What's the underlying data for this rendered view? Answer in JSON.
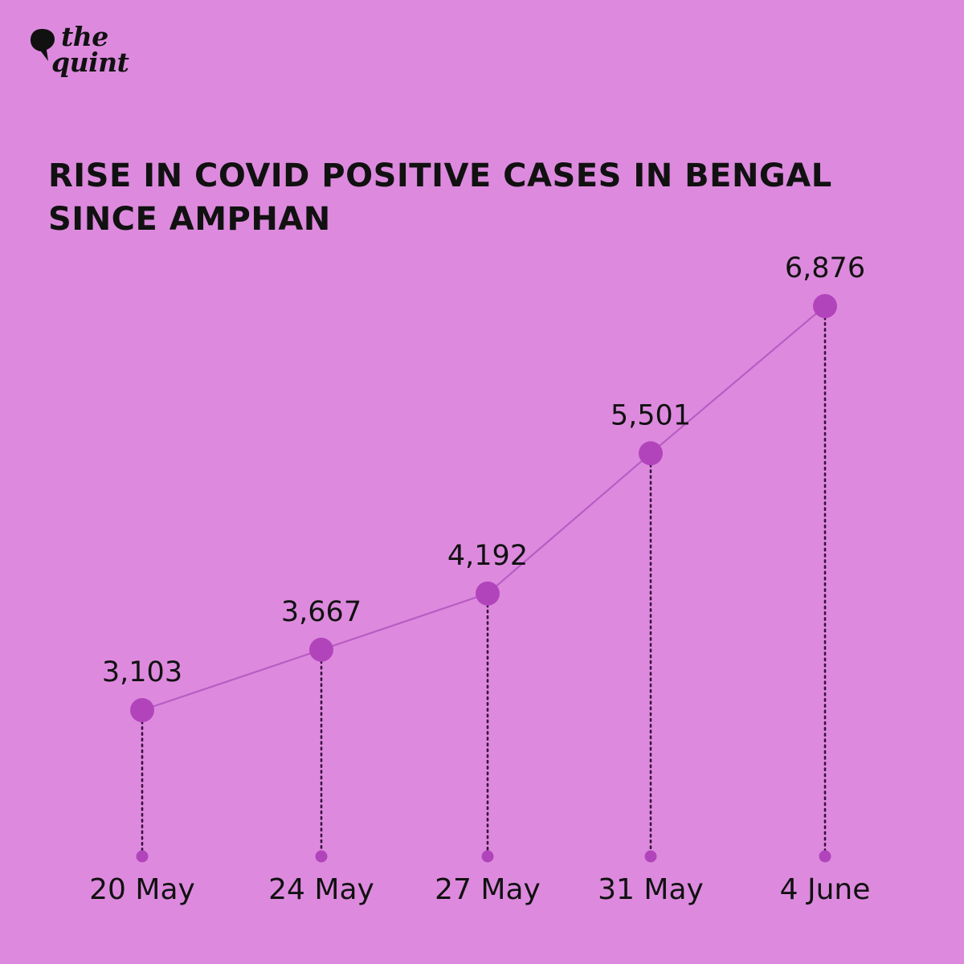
{
  "brand": {
    "line1": "the",
    "line2": "quint",
    "icon": "speech-bubble-icon"
  },
  "colors": {
    "background": "#dd8ade",
    "accent": "#b244bb",
    "line": "#b95cc4",
    "text": "#111111"
  },
  "chart_data": {
    "type": "line",
    "title": "RISE IN COVID POSITIVE CASES IN BENGAL SINCE AMPHAN",
    "categories": [
      "20 May",
      "24 May",
      "27 May",
      "31 May",
      "4 June"
    ],
    "values": [
      3103,
      3667,
      4192,
      5501,
      6876
    ],
    "value_labels": [
      "3,103",
      "3,667",
      "4,192",
      "5,501",
      "6,876"
    ],
    "grid": false,
    "legend": "none"
  }
}
